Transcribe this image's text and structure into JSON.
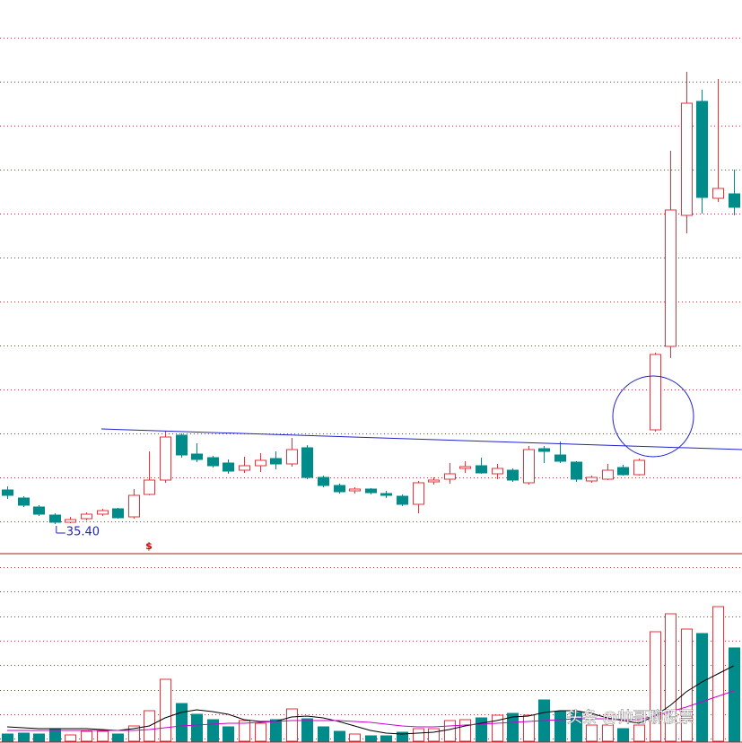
{
  "chart_data": [
    {
      "type": "candlestick",
      "ylim": [
        33.85,
        64.6
      ],
      "yticks": [
        62.5,
        60.05,
        57.6,
        55.15,
        52.7,
        50.25,
        47.8,
        45.35,
        42.9,
        40.45,
        38.0,
        35.55
      ],
      "grid": true,
      "up_color": "#e8323c",
      "down_color": "#008b8b",
      "open": [
        37.3,
        36.85,
        36.35,
        35.9,
        35.5,
        35.7,
        35.95,
        36.25,
        35.8,
        37.05,
        37.85,
        40.35,
        39.3,
        39.1,
        38.8,
        38.4,
        38.65,
        39.05,
        38.75,
        39.65,
        38.0,
        37.55,
        37.25,
        37.35,
        37.1,
        36.95,
        36.5,
        37.75,
        37.9,
        38.5,
        38.65,
        38.2,
        38.4,
        37.7,
        39.6,
        39.25,
        38.85,
        37.8,
        37.9,
        38.55,
        38.15,
        40.65,
        45.3,
        52.6,
        58.95,
        53.55,
        53.8
      ],
      "high": [
        37.5,
        36.95,
        36.45,
        36.0,
        35.8,
        36.05,
        36.25,
        36.3,
        37.35,
        39.45,
        40.6,
        40.45,
        39.9,
        39.2,
        39.0,
        39.15,
        39.35,
        39.45,
        40.2,
        39.8,
        38.1,
        37.65,
        37.45,
        37.4,
        37.25,
        37.05,
        37.8,
        38.0,
        38.8,
        38.9,
        39.1,
        38.75,
        38.5,
        39.75,
        39.75,
        40.0,
        38.9,
        38.1,
        38.75,
        38.7,
        39.05,
        44.95,
        56.2,
        60.6,
        59.6,
        60.2,
        55.15
      ],
      "low": [
        36.8,
        36.35,
        35.85,
        35.4,
        35.45,
        35.6,
        35.85,
        35.7,
        35.7,
        37.0,
        37.7,
        39.1,
        38.85,
        38.55,
        38.2,
        38.25,
        38.3,
        38.45,
        38.6,
        37.9,
        37.45,
        37.1,
        37.1,
        37.05,
        36.85,
        36.4,
        36.0,
        37.6,
        37.65,
        38.25,
        38.2,
        37.9,
        37.75,
        37.6,
        38.8,
        38.8,
        37.75,
        37.7,
        37.85,
        38.1,
        38.1,
        40.55,
        44.65,
        51.6,
        52.7,
        53.35,
        52.6
      ],
      "close": [
        37.0,
        36.45,
        35.95,
        35.5,
        35.65,
        35.95,
        36.15,
        35.75,
        37.0,
        37.85,
        40.25,
        39.25,
        39.0,
        38.65,
        38.35,
        38.65,
        38.95,
        38.75,
        39.55,
        38.0,
        37.55,
        37.2,
        37.35,
        37.15,
        37.0,
        36.5,
        37.7,
        37.85,
        38.2,
        38.6,
        38.25,
        38.5,
        37.85,
        39.55,
        39.45,
        38.9,
        37.9,
        38.0,
        38.4,
        38.15,
        38.95,
        44.85,
        52.9,
        58.85,
        53.6,
        54.1,
        53.05
      ],
      "low_label": "35.40",
      "marker_text": "$",
      "trend_color": "#2222cc"
    },
    {
      "type": "bar",
      "ylim": [
        0,
        208
      ],
      "yticks": [
        3,
        30,
        57,
        85,
        112,
        139,
        167,
        194
      ],
      "grid": true,
      "values": [
        8,
        9,
        8,
        13,
        7,
        11,
        11,
        8,
        17,
        34,
        69,
        42,
        30,
        24,
        16,
        23,
        20,
        24,
        36,
        25,
        16,
        11,
        8,
        6,
        6,
        10,
        14,
        14,
        23,
        24,
        26,
        29,
        31,
        29,
        46,
        33,
        32,
        18,
        18,
        14,
        18,
        122,
        142,
        125,
        120,
        150,
        104
      ],
      "ma_lines": [
        {
          "color": "#000000",
          "values": [
            16,
            15,
            14,
            14,
            14,
            14,
            13,
            12,
            14,
            17,
            26,
            32,
            35,
            33,
            30,
            24,
            22,
            22,
            27,
            28,
            26,
            22,
            17,
            12,
            9,
            8,
            9,
            10,
            13,
            17,
            20,
            23,
            27,
            28,
            32,
            34,
            34,
            31,
            26,
            23,
            20,
            28,
            40,
            55,
            66,
            75,
            84
          ]
        },
        {
          "color": "#cc00cc",
          "values": [
            12,
            12,
            12,
            12,
            12,
            12,
            12,
            12,
            12,
            13,
            15,
            17,
            18,
            19,
            20,
            20,
            21,
            22,
            23,
            23,
            23,
            23,
            22,
            21,
            19,
            17,
            16,
            16,
            17,
            18,
            19,
            20,
            21,
            22,
            23,
            24,
            25,
            25,
            25,
            24,
            24,
            28,
            33,
            38,
            44,
            50,
            56
          ]
        }
      ]
    }
  ],
  "watermark": "头条 @帅哥聊股票"
}
